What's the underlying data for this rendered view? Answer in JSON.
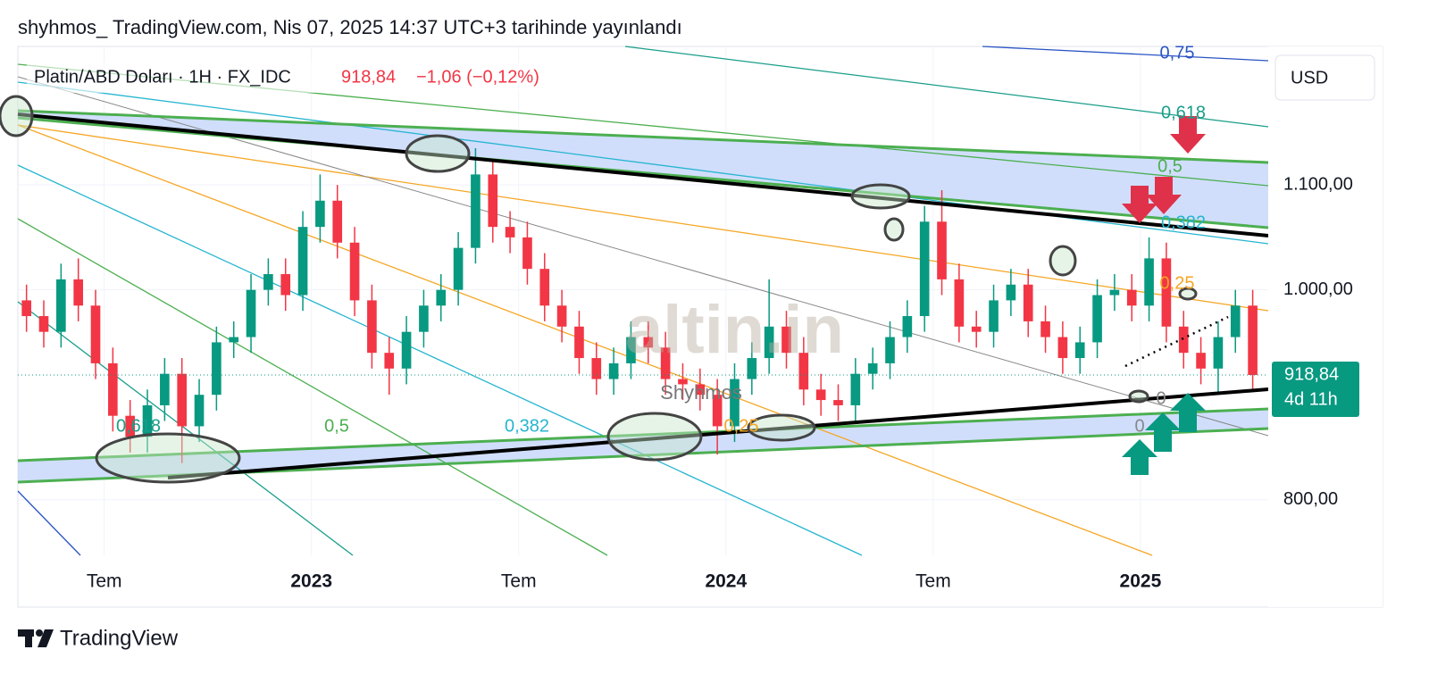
{
  "header": {
    "text": "shyhmos_ TradingView.com, Nis 07, 2025 14:37 UTC+3 tarihinde yayınlandı"
  },
  "chart_data": {
    "type": "candlestick",
    "legend": {
      "symbol": "Platin/ABD Doları · 1H · FX_IDC",
      "price": "918,84",
      "change": "−1,06 (−0,12%)"
    },
    "currency": "USD",
    "up_color": "#089981",
    "down_color": "#f23645",
    "x": [
      3.75,
      4.25,
      4.75,
      5.25,
      5.75,
      6.25,
      6.75,
      7.25,
      7.75,
      8.25,
      8.75,
      9.25,
      9.75,
      10.25,
      10.75,
      11.25,
      11.75,
      12.25,
      12.75,
      13.25,
      13.75,
      14.25,
      14.75,
      15.25,
      15.75,
      16.25,
      16.75,
      17.25,
      17.75,
      18.25,
      18.75,
      19.25,
      19.75,
      20.25,
      20.75,
      21.25,
      21.75,
      22.25,
      22.75,
      23.25,
      23.75,
      24.25,
      24.75,
      25.25,
      25.75,
      26.25,
      26.75,
      27.25,
      27.75,
      28.25,
      28.75,
      29.25,
      29.75,
      30.25,
      30.75,
      31.25,
      31.75,
      32.25,
      32.75,
      33.25,
      33.75,
      34.25,
      34.75,
      35.25,
      35.75,
      36.25,
      36.75,
      37.25,
      37.75,
      38.25,
      38.75,
      39.25
    ],
    "open": [
      990,
      975,
      960,
      1010,
      985,
      930,
      880,
      860,
      890,
      920,
      870,
      900,
      950,
      955,
      1000,
      1015,
      995,
      1060,
      1085,
      1045,
      990,
      940,
      925,
      960,
      985,
      1000,
      1040,
      1110,
      1060,
      1050,
      1020,
      985,
      965,
      935,
      915,
      930,
      955,
      945,
      915,
      910,
      900,
      870,
      915,
      935,
      965,
      940,
      905,
      895,
      890,
      920,
      930,
      955,
      975,
      1065,
      1010,
      965,
      960,
      990,
      1005,
      970,
      955,
      935,
      950,
      995,
      1000,
      985,
      1030,
      965,
      940,
      925,
      955,
      985
    ],
    "high": [
      1005,
      990,
      1025,
      1030,
      1000,
      945,
      895,
      905,
      935,
      935,
      915,
      965,
      970,
      1015,
      1030,
      1030,
      1075,
      1110,
      1100,
      1060,
      1005,
      955,
      975,
      1000,
      1015,
      1055,
      1135,
      1125,
      1075,
      1065,
      1035,
      1000,
      980,
      950,
      945,
      970,
      970,
      960,
      930,
      925,
      915,
      930,
      950,
      1010,
      980,
      955,
      920,
      910,
      935,
      945,
      970,
      990,
      1080,
      1095,
      1025,
      980,
      1005,
      1020,
      1020,
      985,
      970,
      965,
      1010,
      1015,
      1015,
      1050,
      1045,
      980,
      955,
      970,
      1000,
      1000
    ],
    "low": [
      960,
      945,
      945,
      970,
      915,
      865,
      845,
      845,
      875,
      835,
      855,
      885,
      935,
      940,
      985,
      980,
      980,
      1045,
      1030,
      975,
      925,
      900,
      910,
      945,
      970,
      985,
      1025,
      1045,
      1035,
      1005,
      970,
      950,
      920,
      900,
      900,
      915,
      930,
      900,
      895,
      885,
      843,
      855,
      900,
      920,
      925,
      890,
      880,
      875,
      875,
      905,
      915,
      940,
      960,
      995,
      950,
      945,
      945,
      975,
      955,
      940,
      920,
      920,
      935,
      980,
      970,
      970,
      950,
      925,
      910,
      900,
      940,
      905
    ],
    "close": [
      975,
      960,
      1010,
      985,
      930,
      880,
      860,
      890,
      920,
      870,
      900,
      950,
      955,
      1000,
      1015,
      995,
      1060,
      1085,
      1045,
      990,
      940,
      925,
      960,
      985,
      1000,
      1040,
      1110,
      1060,
      1050,
      1020,
      985,
      965,
      935,
      915,
      930,
      955,
      945,
      915,
      910,
      900,
      870,
      915,
      935,
      965,
      940,
      905,
      895,
      890,
      920,
      930,
      955,
      975,
      1065,
      1010,
      965,
      960,
      990,
      1005,
      970,
      955,
      935,
      950,
      995,
      1000,
      985,
      1030,
      965,
      940,
      925,
      955,
      985,
      918.84
    ],
    "xlim": [
      3.5,
      39.7
    ],
    "ylim": [
      747,
      1232
    ],
    "xticks": [
      {
        "value": 6,
        "label": "Tem"
      },
      {
        "value": 12,
        "label": "2023"
      },
      {
        "value": 18,
        "label": "Tem"
      },
      {
        "value": 24,
        "label": "2024"
      },
      {
        "value": 30,
        "label": "Tem"
      },
      {
        "value": 36,
        "label": "2025"
      }
    ],
    "yticks": [
      {
        "value": 800,
        "label": "800,00"
      },
      {
        "value": 1000,
        "label": "1.000,00"
      },
      {
        "value": 1100,
        "label": "1.100,00"
      }
    ],
    "grid": true,
    "price_tag": {
      "value": 918.84,
      "label": "918,84",
      "countdown": "4d 11h"
    },
    "fib_labels_upper": [
      "0,75",
      "0,618",
      "0,5",
      "0,382",
      "0,25",
      "0",
      "0"
    ],
    "fib_labels_lower": [
      "0,618",
      "0,5",
      "0,382",
      "0,25"
    ],
    "watermark": "altin.in",
    "author": "Shyhmos"
  },
  "footer": {
    "brand": "TradingView"
  }
}
